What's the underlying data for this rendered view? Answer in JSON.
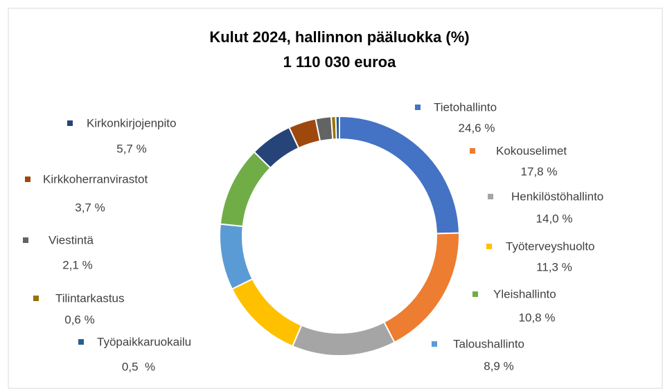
{
  "chart_data": {
    "type": "donut",
    "title": "Kulut 2024, hallinnon pääluokka (%)",
    "subtitle": "1 110 030 euroa",
    "categories": [
      "Tietohallinto",
      "Kokouselimet",
      "Henkilöstöhallinto",
      "Työterveyshuolto",
      "Taloushallinto",
      "Yleishallinto",
      "Kirkonkirjojenpito",
      "Kirkkoherranvirastot",
      "Viestintä",
      "Tilintarkastus",
      "Työpaikkaruokailu"
    ],
    "values": [
      24.6,
      17.8,
      14.0,
      11.3,
      8.9,
      10.8,
      5.7,
      3.7,
      2.1,
      0.6,
      0.5
    ],
    "value_labels": [
      "24,6 %",
      "17,8 %",
      "14,0 %",
      "11,3 %",
      "8,9 %",
      "10,8 %",
      "5,7 %",
      "3,7 %",
      "2,1 %",
      "0,6 %",
      "0,5  %"
    ],
    "colors": [
      "#4472c4",
      "#ed7d31",
      "#a5a5a5",
      "#ffc000",
      "#5b9bd5",
      "#70ad47",
      "#264478",
      "#9e480e",
      "#636363",
      "#997300",
      "#255e91"
    ]
  }
}
